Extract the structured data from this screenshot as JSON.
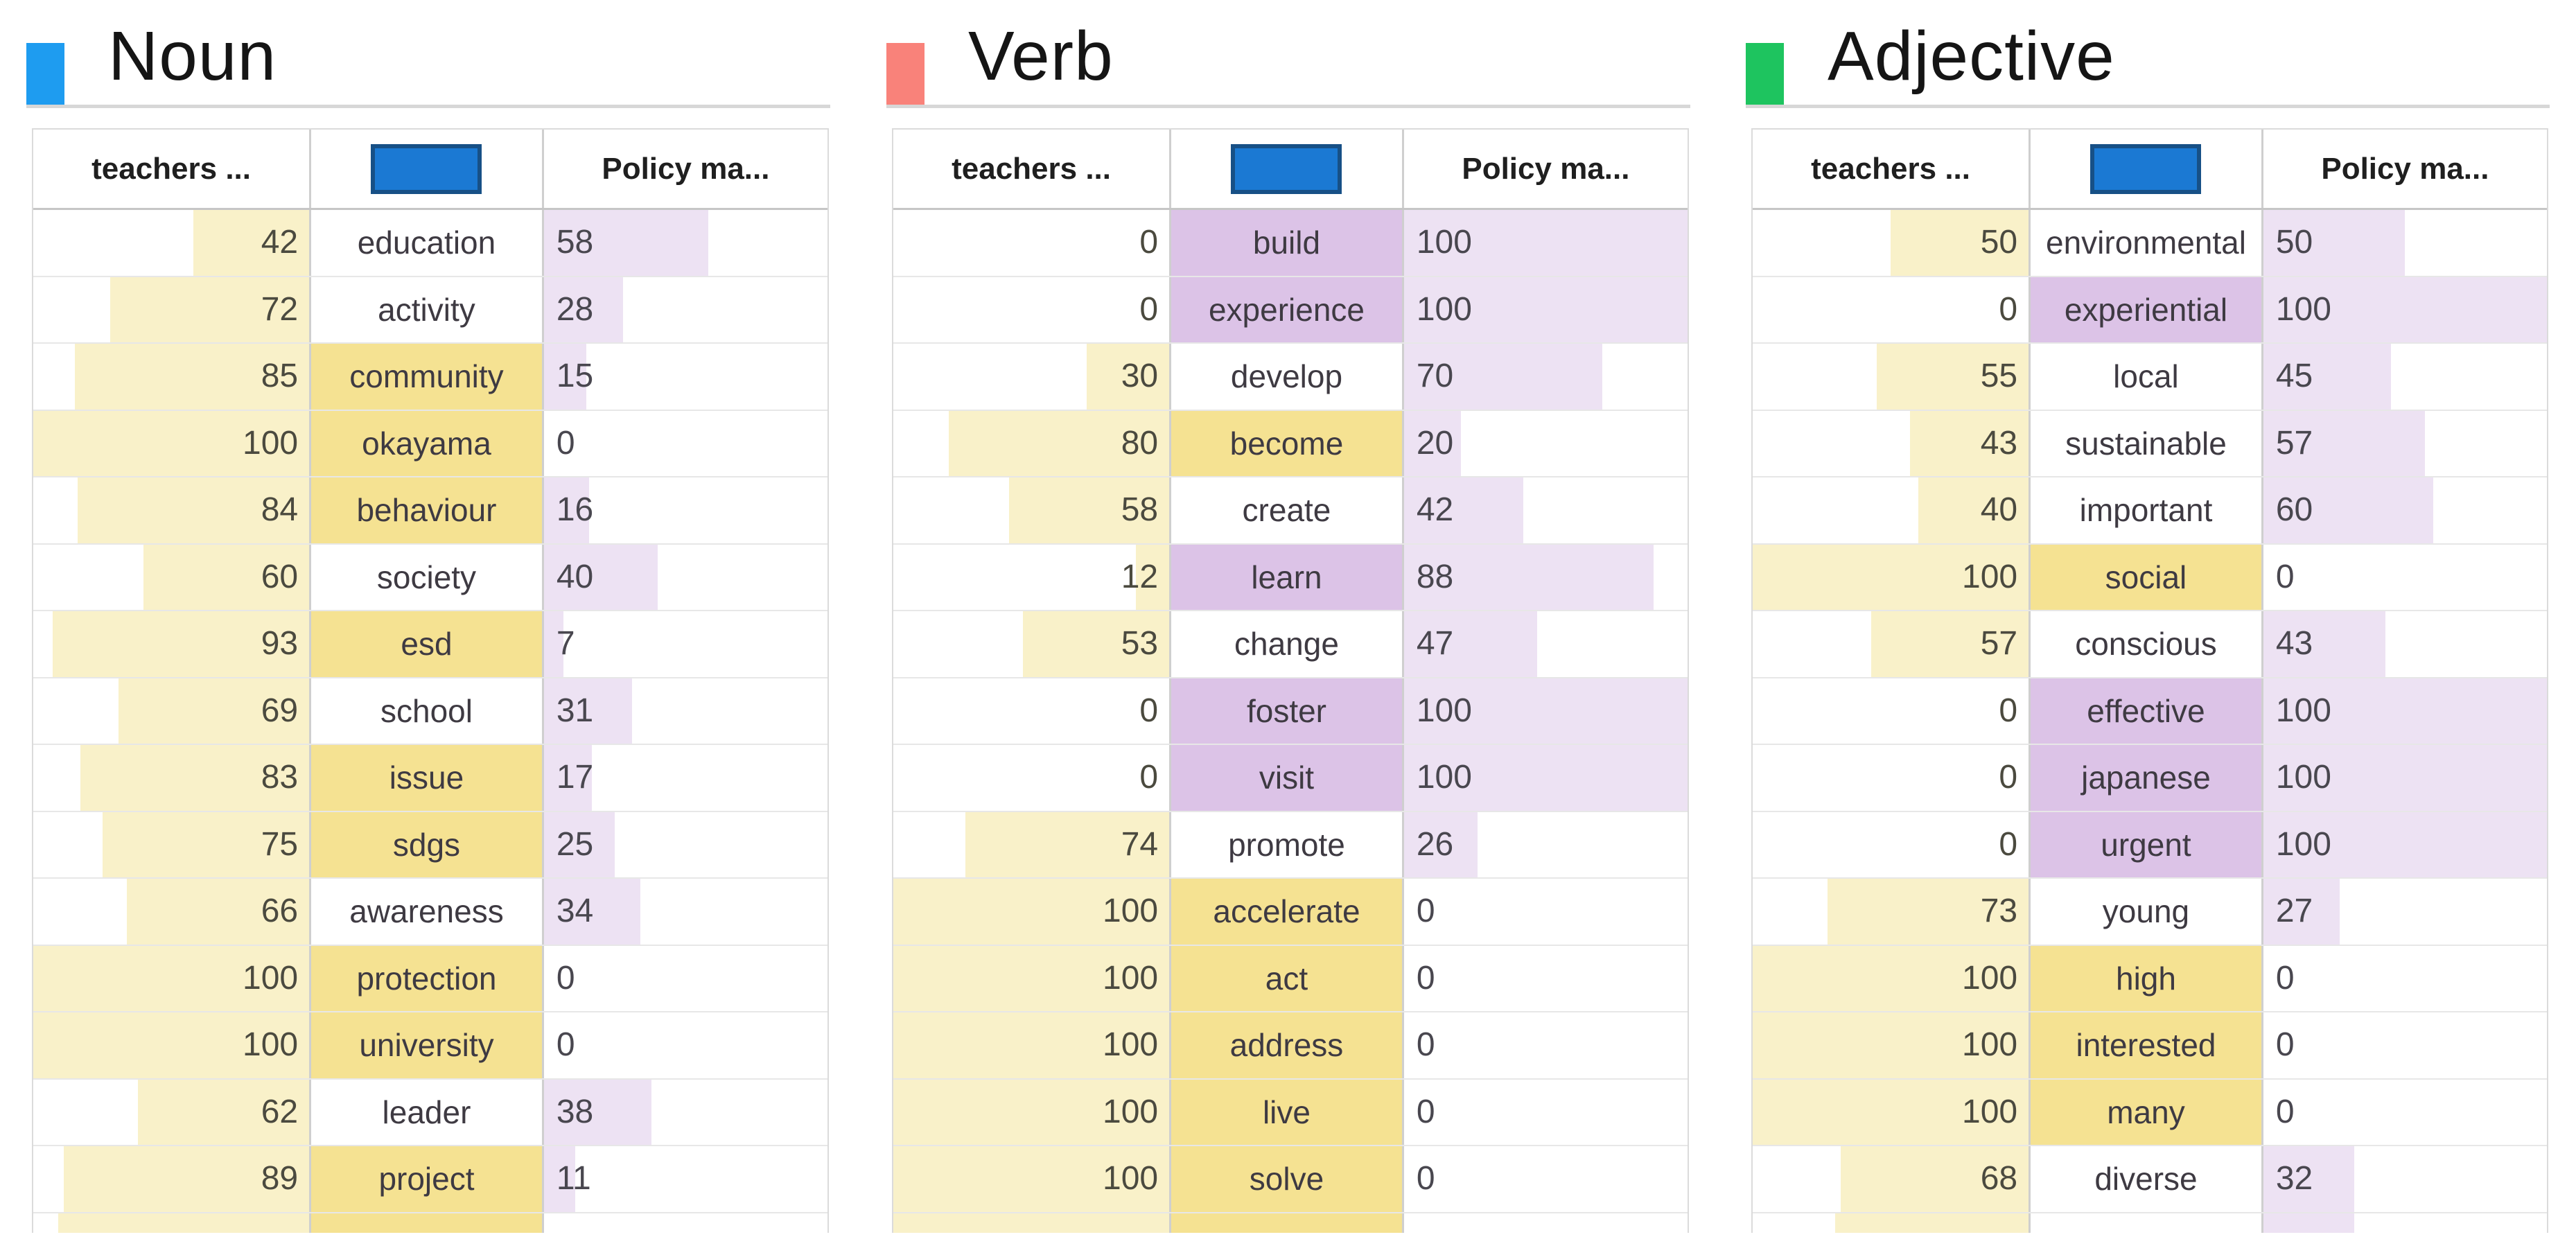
{
  "colors": {
    "noun_legend": "#1e9cf0",
    "verb_legend": "#f9827a",
    "adjective_legend": "#1ec45f",
    "header_rect_fill": "#1b79d3",
    "header_rect_border": "#175086",
    "teachers_bar": "#f9f1c9",
    "policy_bar": "#ede2f3",
    "word_yellow": "#f5e292",
    "word_purple": "#dcc3e7"
  },
  "icons": {
    "word_column_header": "blue-rectangle-icon"
  },
  "chart_data": [
    {
      "type": "table",
      "title": "Noun",
      "legend_color": "#1e9cf0",
      "column_headers": {
        "teachers": "teachers ...",
        "word": "",
        "policy": "Policy ma..."
      },
      "value_range": [
        0,
        100
      ],
      "bar_style": "teachers bar right-anchored yellow; policy bar left-anchored purple; word cell yellow when teachers >= 75, purple when policy >= 75",
      "rows": [
        {
          "teachers": 42,
          "word": "education",
          "policy": 58
        },
        {
          "teachers": 72,
          "word": "activity",
          "policy": 28
        },
        {
          "teachers": 85,
          "word": "community",
          "policy": 15
        },
        {
          "teachers": 100,
          "word": "okayama",
          "policy": 0
        },
        {
          "teachers": 84,
          "word": "behaviour",
          "policy": 16
        },
        {
          "teachers": 60,
          "word": "society",
          "policy": 40
        },
        {
          "teachers": 93,
          "word": "esd",
          "policy": 7
        },
        {
          "teachers": 69,
          "word": "school",
          "policy": 31
        },
        {
          "teachers": 83,
          "word": "issue",
          "policy": 17
        },
        {
          "teachers": 75,
          "word": "sdgs",
          "policy": 25
        },
        {
          "teachers": 66,
          "word": "awareness",
          "policy": 34
        },
        {
          "teachers": 100,
          "word": "protection",
          "policy": 0
        },
        {
          "teachers": 100,
          "word": "university",
          "policy": 0
        },
        {
          "teachers": 62,
          "word": "leader",
          "policy": 38
        },
        {
          "teachers": 89,
          "word": "project",
          "policy": 11
        }
      ],
      "partial_row": {
        "teachers_bar_pct": 91,
        "word_highlight": "yellow",
        "policy_bar_pct": 0
      }
    },
    {
      "type": "table",
      "title": "Verb",
      "legend_color": "#f9827a",
      "column_headers": {
        "teachers": "teachers ...",
        "word": "",
        "policy": "Policy ma..."
      },
      "value_range": [
        0,
        100
      ],
      "bar_style": "teachers bar right-anchored yellow; policy bar left-anchored purple; word cell yellow when teachers >= 75, purple when policy >= 75",
      "rows": [
        {
          "teachers": 0,
          "word": "build",
          "policy": 100
        },
        {
          "teachers": 0,
          "word": "experience",
          "policy": 100
        },
        {
          "teachers": 30,
          "word": "develop",
          "policy": 70
        },
        {
          "teachers": 80,
          "word": "become",
          "policy": 20
        },
        {
          "teachers": 58,
          "word": "create",
          "policy": 42
        },
        {
          "teachers": 12,
          "word": "learn",
          "policy": 88
        },
        {
          "teachers": 53,
          "word": "change",
          "policy": 47
        },
        {
          "teachers": 0,
          "word": "foster",
          "policy": 100
        },
        {
          "teachers": 0,
          "word": "visit",
          "policy": 100
        },
        {
          "teachers": 74,
          "word": "promote",
          "policy": 26
        },
        {
          "teachers": 100,
          "word": "accelerate",
          "policy": 0
        },
        {
          "teachers": 100,
          "word": "act",
          "policy": 0
        },
        {
          "teachers": 100,
          "word": "address",
          "policy": 0
        },
        {
          "teachers": 100,
          "word": "live",
          "policy": 0
        },
        {
          "teachers": 100,
          "word": "solve",
          "policy": 0
        }
      ],
      "partial_row": {
        "teachers_bar_pct": 100,
        "word_highlight": "yellow",
        "policy_bar_pct": 0
      }
    },
    {
      "type": "table",
      "title": "Adjective",
      "legend_color": "#1ec45f",
      "column_headers": {
        "teachers": "teachers ...",
        "word": "",
        "policy": "Policy ma..."
      },
      "value_range": [
        0,
        100
      ],
      "bar_style": "teachers bar right-anchored yellow; policy bar left-anchored purple; word cell yellow when teachers >= 75, purple when policy >= 75",
      "rows": [
        {
          "teachers": 50,
          "word": "environmental",
          "policy": 50
        },
        {
          "teachers": 0,
          "word": "experiential",
          "policy": 100
        },
        {
          "teachers": 55,
          "word": "local",
          "policy": 45
        },
        {
          "teachers": 43,
          "word": "sustainable",
          "policy": 57
        },
        {
          "teachers": 40,
          "word": "important",
          "policy": 60
        },
        {
          "teachers": 100,
          "word": "social",
          "policy": 0
        },
        {
          "teachers": 57,
          "word": "conscious",
          "policy": 43
        },
        {
          "teachers": 0,
          "word": "effective",
          "policy": 100
        },
        {
          "teachers": 0,
          "word": "japanese",
          "policy": 100
        },
        {
          "teachers": 0,
          "word": "urgent",
          "policy": 100
        },
        {
          "teachers": 73,
          "word": "young",
          "policy": 27
        },
        {
          "teachers": 100,
          "word": "high",
          "policy": 0
        },
        {
          "teachers": 100,
          "word": "interested",
          "policy": 0
        },
        {
          "teachers": 100,
          "word": "many",
          "policy": 0
        },
        {
          "teachers": 68,
          "word": "diverse",
          "policy": 32
        }
      ],
      "partial_row": {
        "teachers_bar_pct": 70,
        "word_highlight": "none",
        "policy_bar_pct": 32
      }
    }
  ]
}
